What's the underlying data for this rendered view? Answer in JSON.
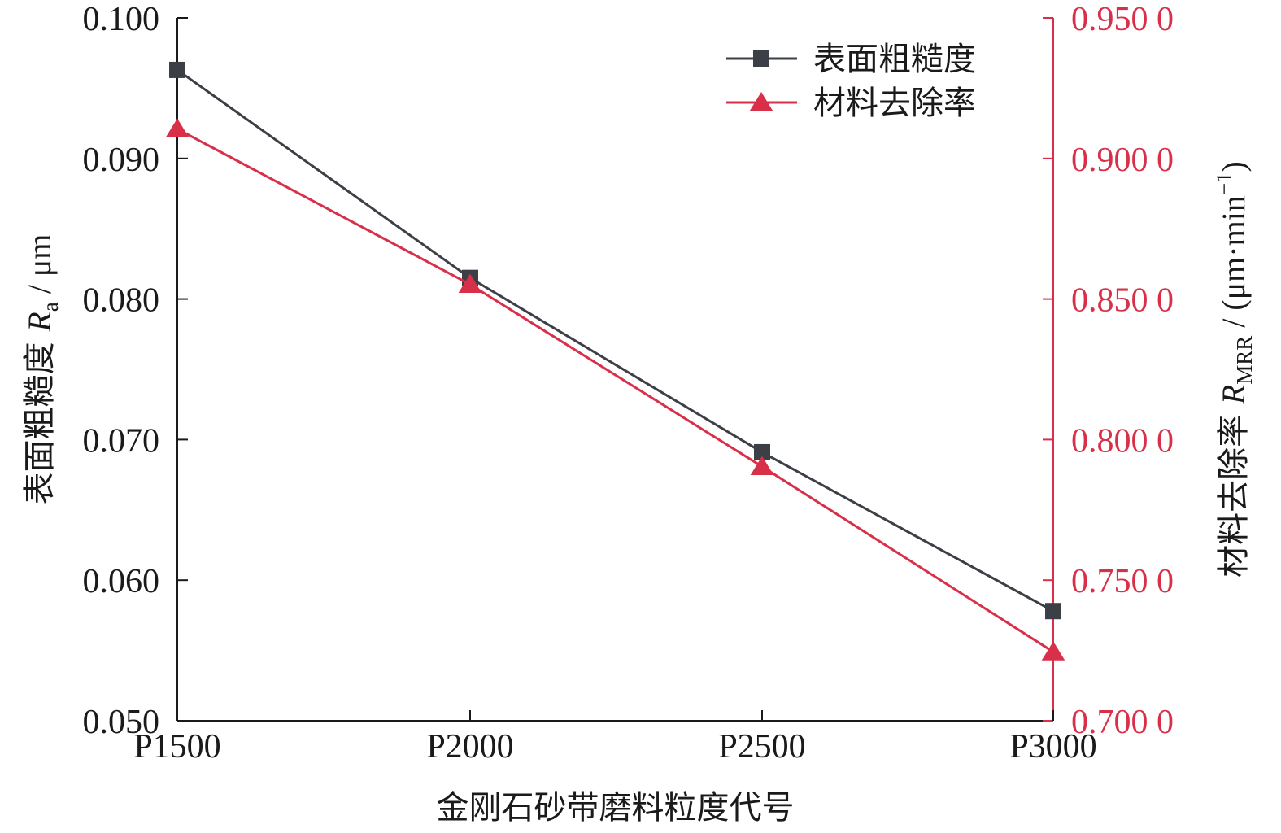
{
  "chart_data": {
    "type": "line",
    "categories": [
      "P1500",
      "P2000",
      "P2500",
      "P3000"
    ],
    "xlabel": "金刚石砂带磨料粒度代号",
    "ylabel_left": {
      "prefix": "表面粗糙度 ",
      "var": "R",
      "sub": "a",
      "unit": " / μm"
    },
    "ylabel_right": {
      "prefix": "材料去除率 ",
      "var": "R",
      "sub": "MRR",
      "unit_open": " / (μm·min",
      "sup": "−1",
      "unit_close": ")"
    },
    "y_left": {
      "lim": [
        0.05,
        0.1
      ],
      "ticks": [
        0.05,
        0.06,
        0.07,
        0.08,
        0.09,
        0.1
      ],
      "tick_labels": [
        "0.050",
        "0.060",
        "0.070",
        "0.080",
        "0.090",
        "0.100"
      ]
    },
    "y_right": {
      "lim": [
        0.7,
        0.95
      ],
      "ticks": [
        0.7,
        0.75,
        0.8,
        0.85,
        0.9,
        0.95
      ],
      "tick_labels": [
        "0.700 0",
        "0.750 0",
        "0.800 0",
        "0.850 0",
        "0.900 0",
        "0.950 0"
      ]
    },
    "series": [
      {
        "name": "表面粗糙度",
        "axis": "left",
        "marker": "square",
        "color": "#3d3f46",
        "values": [
          0.0963,
          0.0815,
          0.0691,
          0.0578
        ]
      },
      {
        "name": "材料去除率",
        "axis": "right",
        "marker": "triangle",
        "color": "#d9304a",
        "values": [
          0.9105,
          0.8552,
          0.7904,
          0.7245
        ]
      }
    ],
    "legend_position": "top-right",
    "grid": false
  }
}
